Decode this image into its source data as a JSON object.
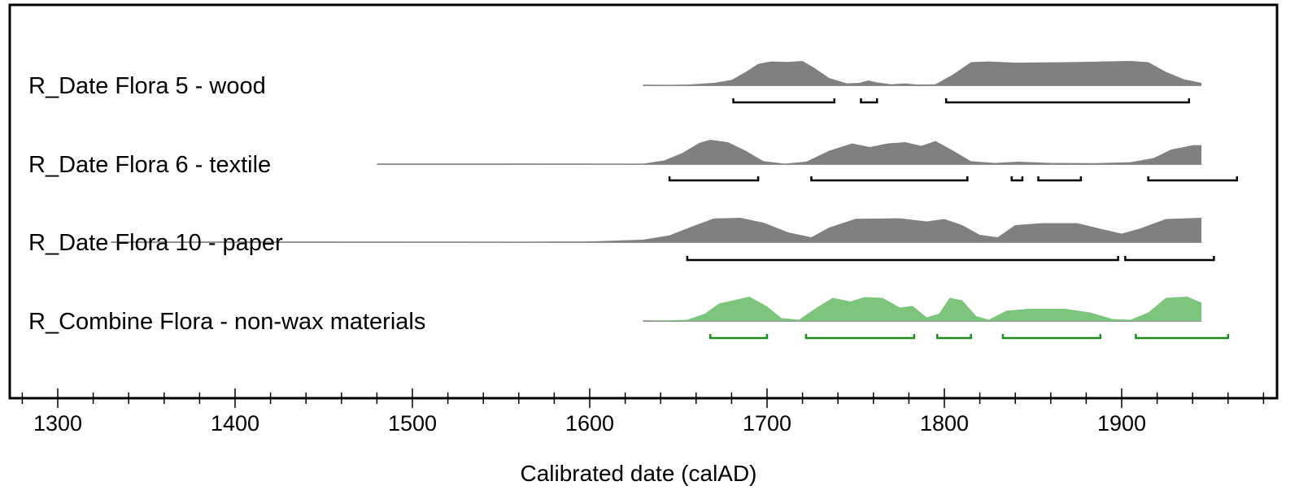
{
  "chart_data": {
    "type": "area",
    "title": "",
    "xlabel": "Calibrated date (calAD)",
    "ylabel": "",
    "xlim": [
      1275,
      1990
    ],
    "grid": false,
    "x_ticks": [
      1300,
      1400,
      1500,
      1600,
      1700,
      1800,
      1900
    ],
    "x_tick_labels": [
      "1300",
      "1400",
      "1500",
      "1600",
      "1700",
      "1800",
      "1900"
    ],
    "minor_tick_step": 20,
    "series": [
      {
        "name": "R_Date Flora 5 - wood",
        "color": "#808080",
        "range_color": "#000000",
        "support": [
          1630,
          1945
        ],
        "points": [
          [
            1630,
            0
          ],
          [
            1655,
            0.03
          ],
          [
            1670,
            0.1
          ],
          [
            1680,
            0.22
          ],
          [
            1688,
            0.55
          ],
          [
            1695,
            0.88
          ],
          [
            1702,
            0.98
          ],
          [
            1712,
            0.96
          ],
          [
            1720,
            1.0
          ],
          [
            1727,
            0.7
          ],
          [
            1735,
            0.3
          ],
          [
            1745,
            0.08
          ],
          [
            1752,
            0.1
          ],
          [
            1757,
            0.2
          ],
          [
            1762,
            0.12
          ],
          [
            1770,
            0.04
          ],
          [
            1778,
            0.08
          ],
          [
            1785,
            0.03
          ],
          [
            1795,
            0.04
          ],
          [
            1805,
            0.45
          ],
          [
            1815,
            0.95
          ],
          [
            1825,
            0.98
          ],
          [
            1840,
            0.93
          ],
          [
            1870,
            0.95
          ],
          [
            1890,
            0.98
          ],
          [
            1905,
            1.0
          ],
          [
            1915,
            0.95
          ],
          [
            1925,
            0.55
          ],
          [
            1935,
            0.25
          ],
          [
            1945,
            0.1
          ]
        ],
        "ranges": [
          [
            1681,
            1738
          ],
          [
            1753,
            1762
          ],
          [
            1801,
            1938
          ]
        ]
      },
      {
        "name": "R_Date Flora 6 - textile",
        "color": "#808080",
        "range_color": "#000000",
        "support": [
          1480,
          1945
        ],
        "points": [
          [
            1480,
            0
          ],
          [
            1600,
            0.005
          ],
          [
            1630,
            0.02
          ],
          [
            1642,
            0.15
          ],
          [
            1652,
            0.45
          ],
          [
            1662,
            0.88
          ],
          [
            1668,
            1.0
          ],
          [
            1678,
            0.9
          ],
          [
            1688,
            0.55
          ],
          [
            1698,
            0.12
          ],
          [
            1710,
            0.02
          ],
          [
            1722,
            0.1
          ],
          [
            1735,
            0.55
          ],
          [
            1748,
            0.85
          ],
          [
            1758,
            0.7
          ],
          [
            1768,
            0.85
          ],
          [
            1778,
            0.9
          ],
          [
            1787,
            0.75
          ],
          [
            1795,
            0.95
          ],
          [
            1805,
            0.55
          ],
          [
            1815,
            0.12
          ],
          [
            1828,
            0.05
          ],
          [
            1842,
            0.1
          ],
          [
            1860,
            0.05
          ],
          [
            1885,
            0.04
          ],
          [
            1905,
            0.08
          ],
          [
            1918,
            0.25
          ],
          [
            1928,
            0.6
          ],
          [
            1935,
            0.7
          ],
          [
            1940,
            0.78
          ],
          [
            1945,
            0.78
          ]
        ],
        "ranges": [
          [
            1645,
            1695
          ],
          [
            1725,
            1813
          ],
          [
            1838,
            1844
          ],
          [
            1853,
            1877
          ],
          [
            1915,
            1965
          ]
        ]
      },
      {
        "name": "R_Date Flora 10 - paper",
        "color": "#808080",
        "range_color": "#000000",
        "support": [
          1330,
          1945
        ],
        "points": [
          [
            1330,
            0
          ],
          [
            1530,
            0.01
          ],
          [
            1600,
            0.03
          ],
          [
            1630,
            0.1
          ],
          [
            1645,
            0.28
          ],
          [
            1658,
            0.65
          ],
          [
            1670,
            0.97
          ],
          [
            1685,
            1.0
          ],
          [
            1698,
            0.8
          ],
          [
            1712,
            0.4
          ],
          [
            1725,
            0.2
          ],
          [
            1735,
            0.6
          ],
          [
            1750,
            0.96
          ],
          [
            1775,
            0.98
          ],
          [
            1790,
            0.85
          ],
          [
            1800,
            0.95
          ],
          [
            1810,
            0.7
          ],
          [
            1820,
            0.3
          ],
          [
            1830,
            0.2
          ],
          [
            1840,
            0.7
          ],
          [
            1855,
            0.78
          ],
          [
            1875,
            0.78
          ],
          [
            1888,
            0.55
          ],
          [
            1900,
            0.35
          ],
          [
            1910,
            0.55
          ],
          [
            1925,
            0.95
          ],
          [
            1945,
            1.0
          ]
        ],
        "ranges": [
          [
            1655,
            1898
          ],
          [
            1902,
            1952
          ]
        ]
      },
      {
        "name": "R_Combine Flora - non-wax materials",
        "color": "#7dc47d",
        "range_color": "#1e8c1e",
        "support": [
          1630,
          1945
        ],
        "points": [
          [
            1630,
            0
          ],
          [
            1655,
            0.05
          ],
          [
            1665,
            0.3
          ],
          [
            1673,
            0.72
          ],
          [
            1683,
            0.88
          ],
          [
            1690,
            1.0
          ],
          [
            1700,
            0.6
          ],
          [
            1708,
            0.12
          ],
          [
            1718,
            0.05
          ],
          [
            1728,
            0.55
          ],
          [
            1737,
            0.95
          ],
          [
            1747,
            0.8
          ],
          [
            1755,
            0.98
          ],
          [
            1765,
            0.95
          ],
          [
            1775,
            0.55
          ],
          [
            1782,
            0.62
          ],
          [
            1790,
            0.15
          ],
          [
            1797,
            0.3
          ],
          [
            1803,
            0.95
          ],
          [
            1810,
            0.85
          ],
          [
            1818,
            0.2
          ],
          [
            1825,
            0.05
          ],
          [
            1835,
            0.42
          ],
          [
            1848,
            0.5
          ],
          [
            1868,
            0.5
          ],
          [
            1882,
            0.35
          ],
          [
            1895,
            0.08
          ],
          [
            1905,
            0.05
          ],
          [
            1915,
            0.35
          ],
          [
            1925,
            0.95
          ],
          [
            1937,
            1.0
          ],
          [
            1945,
            0.75
          ]
        ],
        "ranges": [
          [
            1668,
            1700
          ],
          [
            1722,
            1783
          ],
          [
            1796,
            1815
          ],
          [
            1833,
            1888
          ],
          [
            1908,
            1960
          ]
        ]
      }
    ]
  }
}
